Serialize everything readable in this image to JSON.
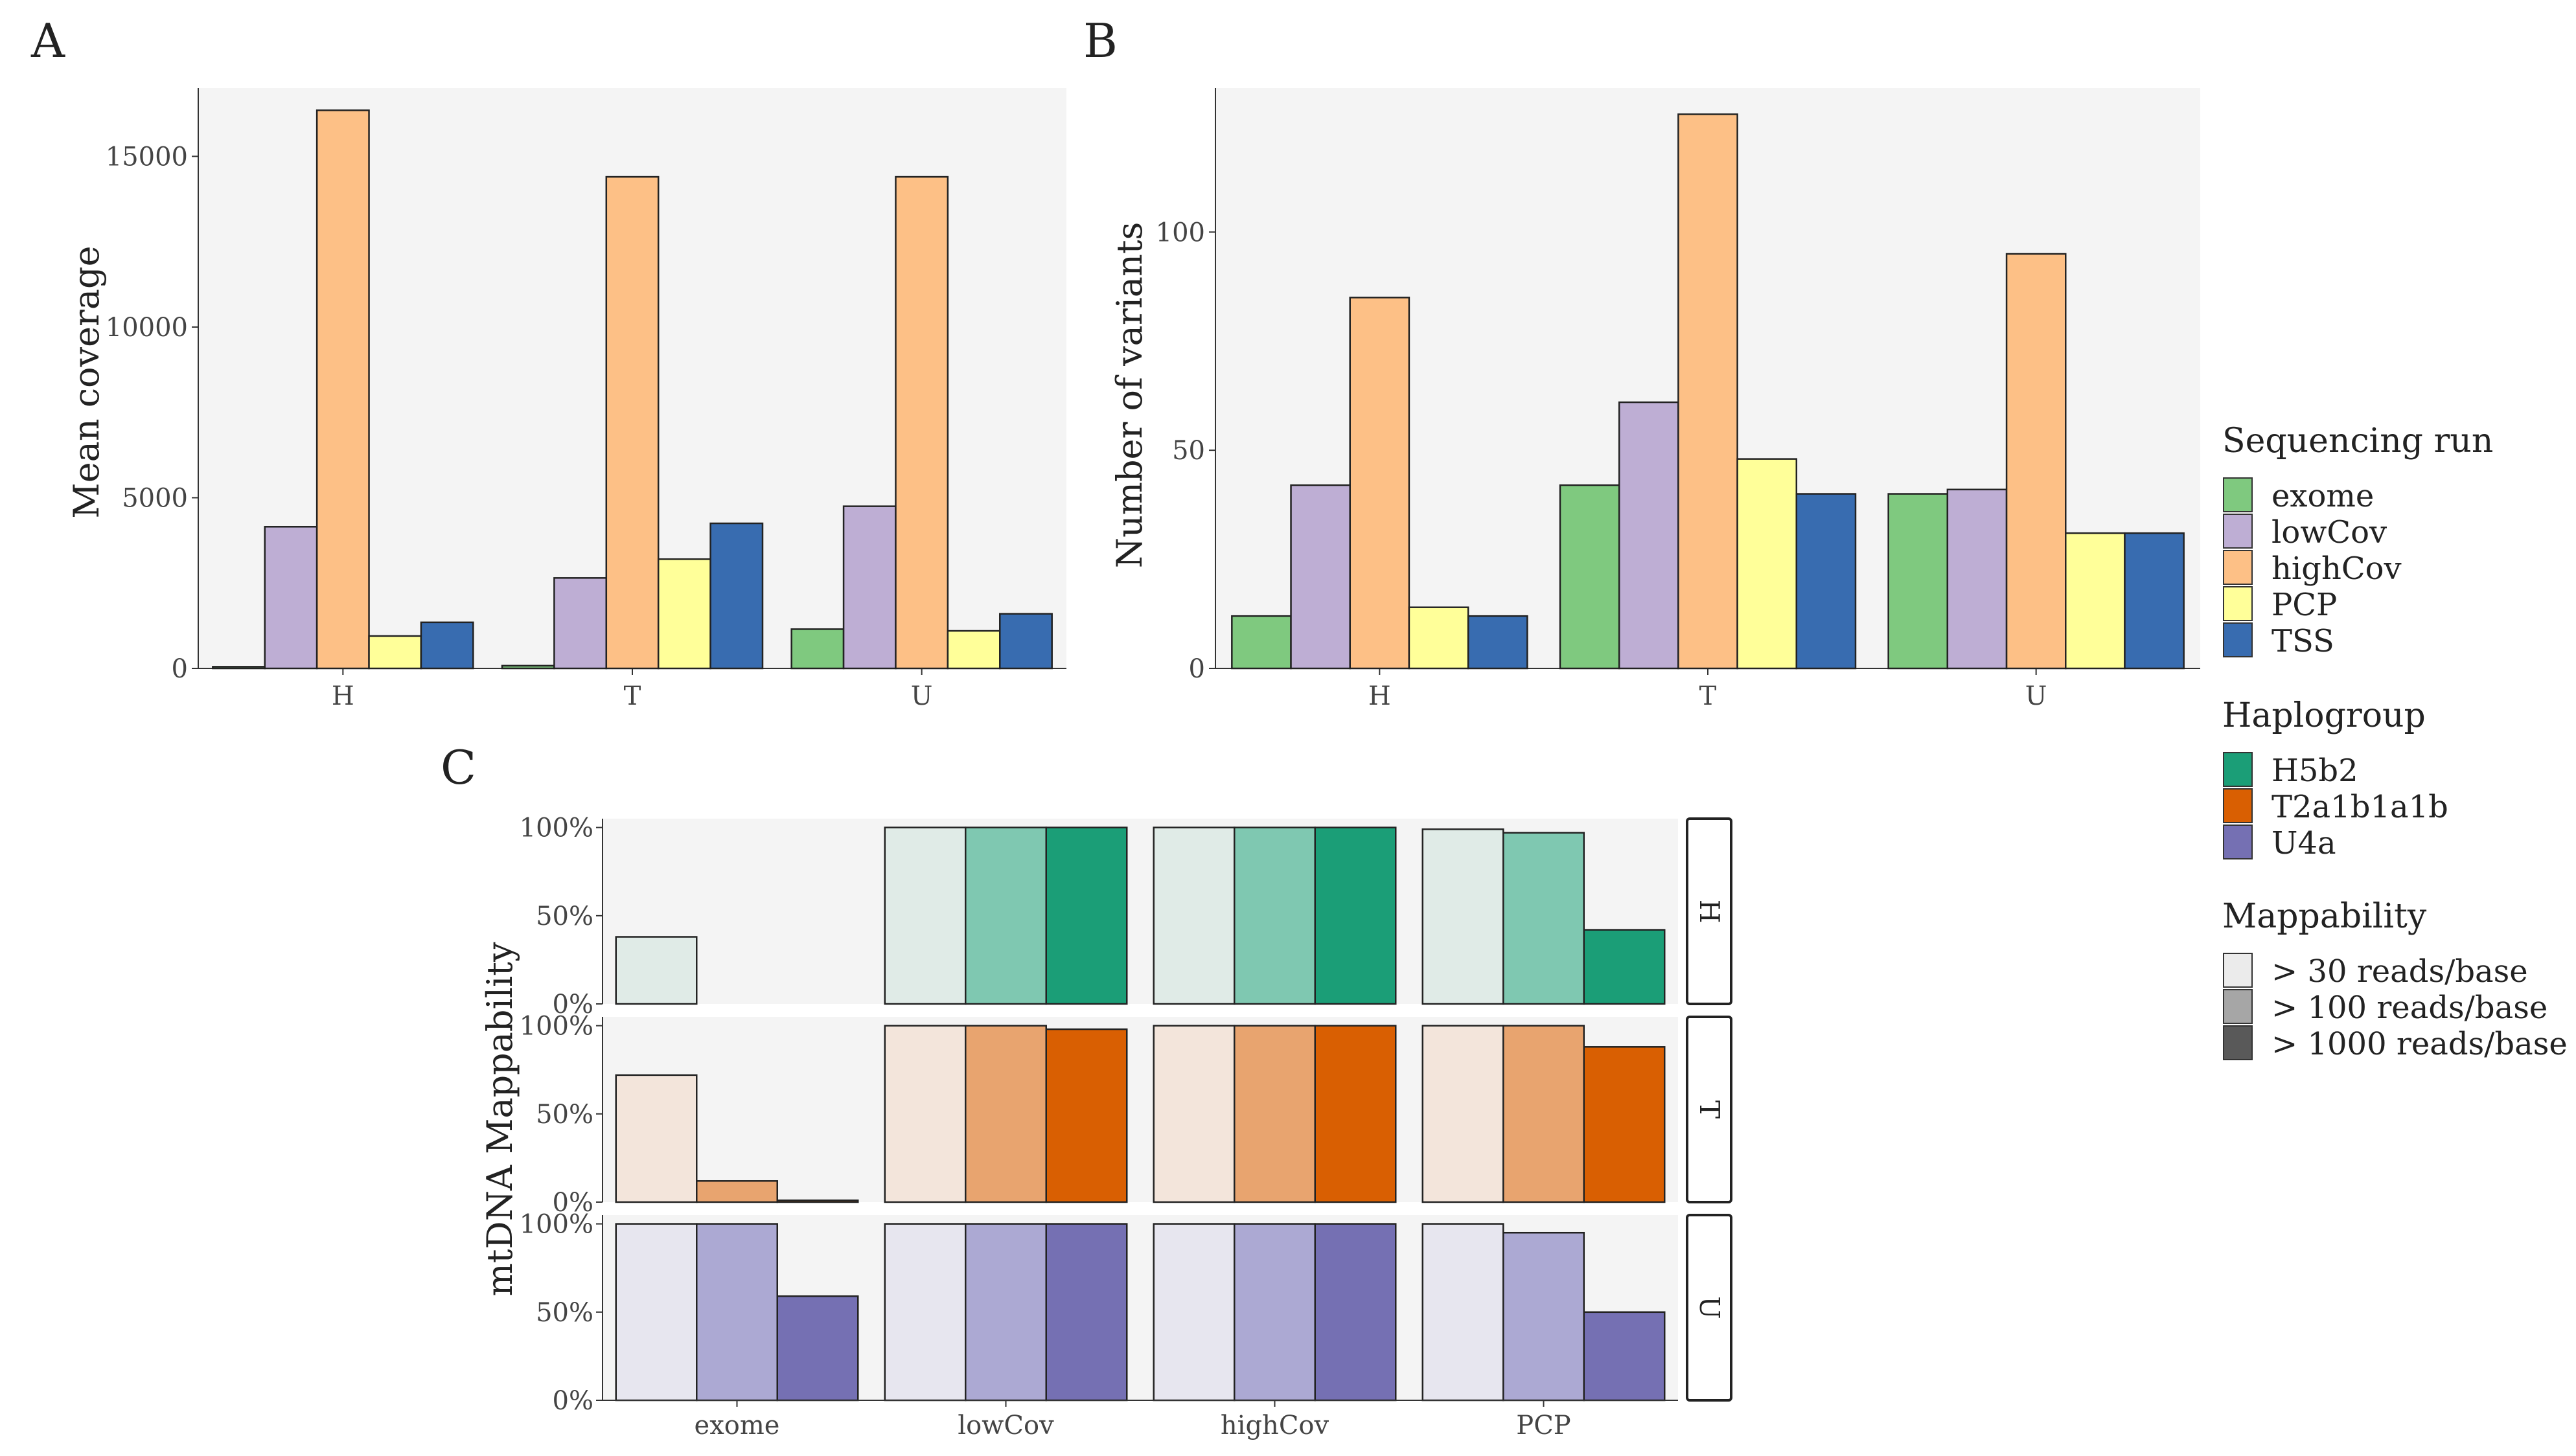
{
  "panel_labels": {
    "a": "A",
    "b": "B",
    "c": "C"
  },
  "legends": {
    "sequencing_run": {
      "title": "Sequencing run",
      "items": [
        {
          "label": "exome",
          "color": "#7FC97F"
        },
        {
          "label": "lowCov",
          "color": "#BEAED4"
        },
        {
          "label": "highCov",
          "color": "#FDC086"
        },
        {
          "label": "PCP",
          "color": "#FFFF99"
        },
        {
          "label": "TSS",
          "color": "#386CB0"
        }
      ]
    },
    "haplogroup": {
      "title": "Haplogroup",
      "items": [
        {
          "label": "H5b2",
          "color": "#1B9E77"
        },
        {
          "label": "T2a1b1a1b",
          "color": "#D95F02"
        },
        {
          "label": "U4a",
          "color": "#7570B3"
        }
      ]
    },
    "mappability": {
      "title": "Mappability",
      "items": [
        {
          "label": "> 30 reads/base",
          "color": "#EBEBEB"
        },
        {
          "label": "> 100 reads/base",
          "color": "#A6A6A6"
        },
        {
          "label": "> 1000 reads/base",
          "color": "#595959"
        }
      ]
    }
  },
  "chart_data": [
    {
      "id": "A",
      "type": "bar",
      "ylabel": "Mean coverage",
      "xlabel": "",
      "categories": [
        "H",
        "T",
        "U"
      ],
      "ylim": [
        0,
        17000
      ],
      "yticks": [
        0,
        5000,
        10000,
        15000
      ],
      "series": [
        {
          "name": "exome",
          "values": [
            50,
            80,
            1150
          ]
        },
        {
          "name": "lowCov",
          "values": [
            4150,
            2650,
            4750
          ]
        },
        {
          "name": "highCov",
          "values": [
            16350,
            14400,
            14400
          ]
        },
        {
          "name": "PCP",
          "values": [
            950,
            3200,
            1100
          ]
        },
        {
          "name": "TSS",
          "values": [
            1350,
            4250,
            1600
          ]
        }
      ]
    },
    {
      "id": "B",
      "type": "bar",
      "ylabel": "Number of variants",
      "xlabel": "",
      "categories": [
        "H",
        "T",
        "U"
      ],
      "ylim": [
        0,
        133
      ],
      "yticks": [
        0,
        50,
        100
      ],
      "series": [
        {
          "name": "exome",
          "values": [
            12,
            42,
            40
          ]
        },
        {
          "name": "lowCov",
          "values": [
            42,
            61,
            41
          ]
        },
        {
          "name": "highCov",
          "values": [
            85,
            127,
            95
          ]
        },
        {
          "name": "PCP",
          "values": [
            14,
            48,
            31
          ]
        },
        {
          "name": "TSS",
          "values": [
            12,
            40,
            31
          ]
        }
      ]
    },
    {
      "id": "C",
      "type": "bar",
      "ylabel": "mtDNA Mappability",
      "xlabel": "",
      "categories": [
        "exome",
        "lowCov",
        "highCov",
        "PCP"
      ],
      "ylim": [
        0,
        1.05
      ],
      "yticks": [
        "0%",
        "50%",
        "100%"
      ],
      "facets": [
        {
          "name": "H",
          "haplogroup": "H5b2",
          "series": [
            {
              "name": "> 30 reads/base",
              "values": [
                0.38,
                1.0,
                1.0,
                0.99
              ]
            },
            {
              "name": "> 100 reads/base",
              "values": [
                0.0,
                1.0,
                1.0,
                0.97
              ]
            },
            {
              "name": "> 1000 reads/base",
              "values": [
                0.0,
                1.0,
                1.0,
                0.42
              ]
            }
          ]
        },
        {
          "name": "T",
          "haplogroup": "T2a1b1a1b",
          "series": [
            {
              "name": "> 30 reads/base",
              "values": [
                0.72,
                1.0,
                1.0,
                1.0
              ]
            },
            {
              "name": "> 100 reads/base",
              "values": [
                0.12,
                1.0,
                1.0,
                1.0
              ]
            },
            {
              "name": "> 1000 reads/base",
              "values": [
                0.01,
                0.98,
                1.0,
                0.88
              ]
            }
          ]
        },
        {
          "name": "U",
          "haplogroup": "U4a",
          "series": [
            {
              "name": "> 30 reads/base",
              "values": [
                1.0,
                1.0,
                1.0,
                1.0
              ]
            },
            {
              "name": "> 100 reads/base",
              "values": [
                1.0,
                1.0,
                1.0,
                0.95
              ]
            },
            {
              "name": "> 1000 reads/base",
              "values": [
                0.59,
                1.0,
                1.0,
                0.5
              ]
            }
          ]
        }
      ],
      "facet_colors": {
        "H": [
          "#E0EBE7",
          "#7FC8B1",
          "#1B9E77"
        ],
        "T": [
          "#F3E5DB",
          "#E8A46F",
          "#D95F02"
        ],
        "U": [
          "#E7E6EF",
          "#ACA9D3",
          "#7570B3"
        ]
      }
    }
  ]
}
